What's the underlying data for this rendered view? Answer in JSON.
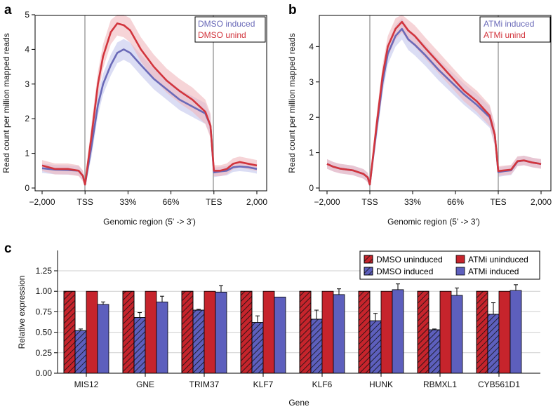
{
  "colors": {
    "red": "#d2353d",
    "blue": "#6a6ab8",
    "red_band": "#f0b8bd",
    "blue_band": "#c3c6ec",
    "bar_red": "#c6242c",
    "bar_blue": "#5d5fbd",
    "gray": "#a0a0a0"
  },
  "chart_data": [
    {
      "panel": "a",
      "type": "area",
      "ylabel": "Read count per million mapped reads",
      "xlabel": "Genomic region (5' -> 3')",
      "xticks": [
        "−2,000",
        "TSS",
        "33%",
        "66%",
        "TES",
        "2,000"
      ],
      "yticks": [
        "0",
        "1",
        "2",
        "3",
        "4",
        "5"
      ],
      "ylim": [
        0,
        5
      ],
      "series": [
        {
          "name": "DMSO induced",
          "color": "#6a6ab8",
          "band": "#c3c6ec",
          "bandw": 0.3,
          "points": [
            [
              0,
              0.57
            ],
            [
              0.15,
              0.55
            ],
            [
              0.3,
              0.53
            ],
            [
              0.6,
              0.52
            ],
            [
              0.85,
              0.5
            ],
            [
              0.95,
              0.35
            ],
            [
              1.0,
              0.1
            ],
            [
              1.15,
              1.2
            ],
            [
              1.3,
              2.4
            ],
            [
              1.42,
              3.0
            ],
            [
              1.6,
              3.55
            ],
            [
              1.75,
              3.9
            ],
            [
              1.9,
              4.0
            ],
            [
              2.05,
              3.9
            ],
            [
              2.3,
              3.55
            ],
            [
              2.6,
              3.15
            ],
            [
              2.9,
              2.85
            ],
            [
              3.2,
              2.55
            ],
            [
              3.5,
              2.35
            ],
            [
              3.8,
              2.15
            ],
            [
              3.92,
              1.8
            ],
            [
              4.0,
              0.45
            ],
            [
              4.15,
              0.48
            ],
            [
              4.3,
              0.5
            ],
            [
              4.45,
              0.6
            ],
            [
              4.6,
              0.62
            ],
            [
              4.8,
              0.6
            ],
            [
              5.0,
              0.55
            ]
          ]
        },
        {
          "name": "DMSO unind",
          "color": "#d2353d",
          "band": "#f0b8bd",
          "bandw": 0.35,
          "points": [
            [
              0,
              0.65
            ],
            [
              0.15,
              0.6
            ],
            [
              0.3,
              0.55
            ],
            [
              0.6,
              0.55
            ],
            [
              0.85,
              0.5
            ],
            [
              0.95,
              0.35
            ],
            [
              1.0,
              0.1
            ],
            [
              1.15,
              1.5
            ],
            [
              1.3,
              3.0
            ],
            [
              1.42,
              3.8
            ],
            [
              1.6,
              4.5
            ],
            [
              1.75,
              4.75
            ],
            [
              1.9,
              4.7
            ],
            [
              2.05,
              4.55
            ],
            [
              2.3,
              4.0
            ],
            [
              2.6,
              3.5
            ],
            [
              2.9,
              3.1
            ],
            [
              3.2,
              2.8
            ],
            [
              3.5,
              2.55
            ],
            [
              3.8,
              2.2
            ],
            [
              3.92,
              1.8
            ],
            [
              4.0,
              0.5
            ],
            [
              4.15,
              0.5
            ],
            [
              4.3,
              0.55
            ],
            [
              4.45,
              0.7
            ],
            [
              4.6,
              0.75
            ],
            [
              4.8,
              0.7
            ],
            [
              5.0,
              0.65
            ]
          ]
        }
      ],
      "legend": [
        "DMSO induced",
        "DMSO unind"
      ]
    },
    {
      "panel": "b",
      "type": "area",
      "ylabel": "Read count per million mapped reads",
      "xlabel": "Genomic region (5' -> 3')",
      "xticks": [
        "−2,000",
        "TSS",
        "33%",
        "66%",
        "TES",
        "2,000"
      ],
      "yticks": [
        "0",
        "1",
        "2",
        "3",
        "4"
      ],
      "ylim": [
        0,
        4.9
      ],
      "series": [
        {
          "name": "ATMi induced",
          "color": "#6a6ab8",
          "band": "#c3c6ec",
          "bandw": 0.3,
          "points": [
            [
              0,
              0.68
            ],
            [
              0.15,
              0.6
            ],
            [
              0.3,
              0.55
            ],
            [
              0.6,
              0.5
            ],
            [
              0.85,
              0.4
            ],
            [
              0.95,
              0.3
            ],
            [
              1.0,
              0.1
            ],
            [
              1.15,
              1.6
            ],
            [
              1.3,
              3.0
            ],
            [
              1.42,
              3.8
            ],
            [
              1.6,
              4.3
            ],
            [
              1.75,
              4.5
            ],
            [
              1.9,
              4.2
            ],
            [
              2.05,
              4.05
            ],
            [
              2.3,
              3.75
            ],
            [
              2.6,
              3.35
            ],
            [
              2.9,
              3.0
            ],
            [
              3.2,
              2.65
            ],
            [
              3.5,
              2.35
            ],
            [
              3.8,
              2.0
            ],
            [
              3.92,
              1.5
            ],
            [
              4.0,
              0.45
            ],
            [
              4.15,
              0.48
            ],
            [
              4.3,
              0.5
            ],
            [
              4.45,
              0.75
            ],
            [
              4.6,
              0.78
            ],
            [
              4.8,
              0.72
            ],
            [
              5.0,
              0.68
            ]
          ]
        },
        {
          "name": "ATMi unind",
          "color": "#d2353d",
          "band": "#f0b8bd",
          "bandw": 0.3,
          "points": [
            [
              0,
              0.68
            ],
            [
              0.15,
              0.6
            ],
            [
              0.3,
              0.55
            ],
            [
              0.6,
              0.5
            ],
            [
              0.85,
              0.4
            ],
            [
              0.95,
              0.3
            ],
            [
              1.0,
              0.1
            ],
            [
              1.15,
              1.7
            ],
            [
              1.3,
              3.2
            ],
            [
              1.42,
              4.0
            ],
            [
              1.6,
              4.5
            ],
            [
              1.75,
              4.7
            ],
            [
              1.9,
              4.45
            ],
            [
              2.05,
              4.3
            ],
            [
              2.3,
              3.95
            ],
            [
              2.6,
              3.55
            ],
            [
              2.9,
              3.15
            ],
            [
              3.2,
              2.75
            ],
            [
              3.5,
              2.45
            ],
            [
              3.8,
              2.05
            ],
            [
              3.92,
              1.5
            ],
            [
              4.0,
              0.48
            ],
            [
              4.15,
              0.5
            ],
            [
              4.3,
              0.52
            ],
            [
              4.45,
              0.76
            ],
            [
              4.6,
              0.78
            ],
            [
              4.8,
              0.72
            ],
            [
              5.0,
              0.68
            ]
          ]
        }
      ],
      "legend": [
        "ATMi induced",
        "ATMi unind"
      ]
    },
    {
      "panel": "c",
      "type": "bar",
      "ylabel": "Relative expression",
      "xlabel": "Gene",
      "ylim": [
        0,
        1.25
      ],
      "yticks": [
        "0.00",
        "0.25",
        "0.50",
        "0.75",
        "1.00",
        "1.25"
      ],
      "categories": [
        "MIS12",
        "GNE",
        "TRIM37",
        "KLF7",
        "KLF6",
        "HUNK",
        "RBMXL1",
        "CYB561D1"
      ],
      "series": [
        {
          "name": "DMSO uninduced",
          "values": [
            1,
            1,
            1,
            1,
            1,
            1,
            1,
            1
          ],
          "errors": [
            0,
            0,
            0,
            0,
            0,
            0,
            0,
            0
          ]
        },
        {
          "name": "DMSO induced",
          "values": [
            0.52,
            0.68,
            0.77,
            0.62,
            0.66,
            0.64,
            0.53,
            0.72
          ],
          "errors": [
            0.02,
            0.06,
            0.01,
            0.08,
            0.11,
            0.09,
            0.01,
            0.14
          ]
        },
        {
          "name": "ATMi uninduced",
          "values": [
            1,
            1,
            1,
            1,
            1,
            1,
            1,
            1
          ],
          "errors": [
            0,
            0,
            0,
            0,
            0,
            0,
            0,
            0
          ]
        },
        {
          "name": "ATMi induced",
          "values": [
            0.84,
            0.87,
            0.99,
            0.93,
            0.96,
            1.02,
            0.95,
            1.01
          ],
          "errors": [
            0.03,
            0.07,
            0.08,
            0.0,
            0.07,
            0.07,
            0.09,
            0.07
          ]
        }
      ],
      "legend": [
        "DMSO uninduced",
        "ATMi uninduced",
        "DMSO induced",
        "ATMi induced"
      ]
    }
  ]
}
